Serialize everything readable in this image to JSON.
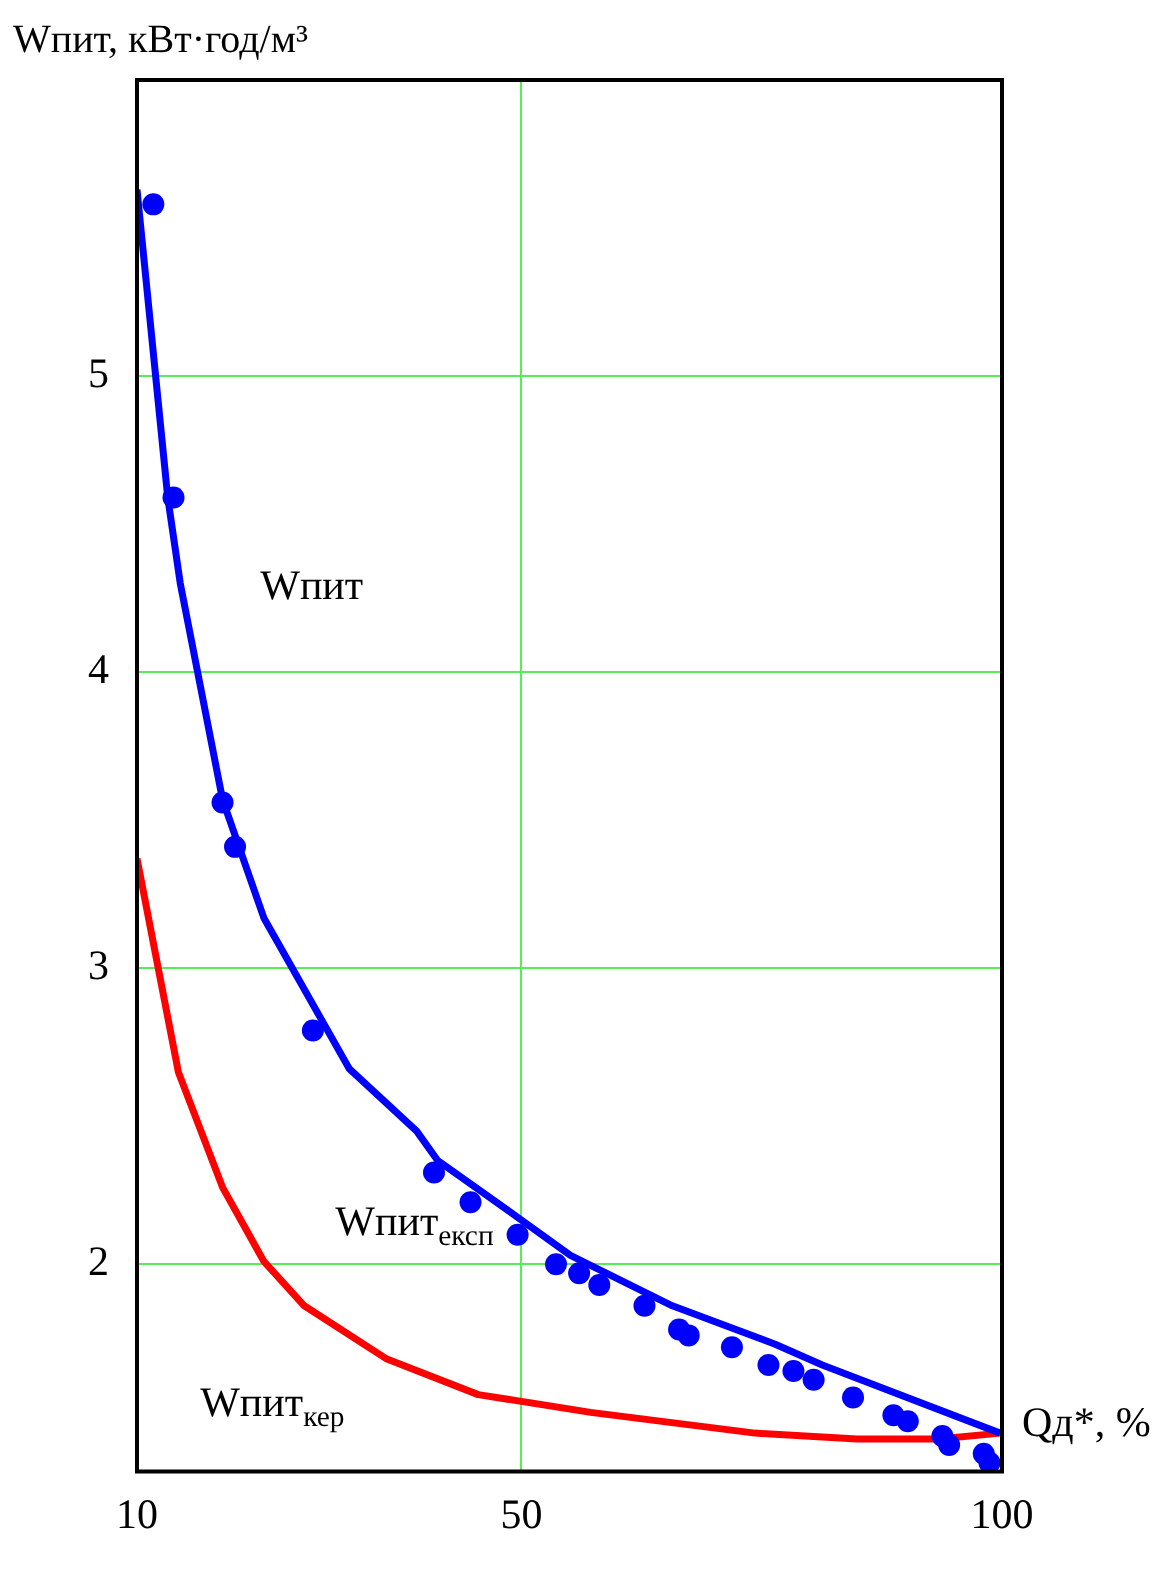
{
  "chart_data": {
    "type": "line",
    "ylabel": "Wпит, кВт·год/м³",
    "xlabel": "Qд*, %",
    "xlim": [
      10,
      100
    ],
    "xticks": [
      10,
      50,
      100
    ],
    "ylim": [
      1.3,
      6
    ],
    "yticks": [
      2,
      3,
      4,
      5
    ],
    "grid": true,
    "legend": false,
    "series": [
      {
        "name": "Wпит",
        "type": "line",
        "marker": "none",
        "color": "#0000ff",
        "x": [
          10,
          13.2,
          14.5,
          18.9,
          23.2,
          32.1,
          39.1,
          41.3,
          48.7,
          55.1,
          65.7,
          76.4,
          81.3,
          99.8
        ],
        "values": [
          5.63,
          4.59,
          4.3,
          3.57,
          3.17,
          2.66,
          2.45,
          2.35,
          2.18,
          2.03,
          1.86,
          1.73,
          1.66,
          1.43
        ]
      },
      {
        "name": "Wпит$_{експ}$",
        "type": "scatter",
        "marker": "circle",
        "color": "#0000ff",
        "x": [
          11.7,
          13.8,
          18.9,
          20.2,
          28.3,
          40.9,
          44.7,
          49.6,
          53.6,
          56,
          58.1,
          62.8,
          66.4,
          67.4,
          71.9,
          75.7,
          78.3,
          80.4,
          84.5,
          88.7,
          90.2,
          93.8,
          94.5,
          98.1,
          98.7
        ],
        "values": [
          5.58,
          4.59,
          3.56,
          3.41,
          2.79,
          2.31,
          2.21,
          2.1,
          2,
          1.97,
          1.93,
          1.86,
          1.78,
          1.76,
          1.72,
          1.66,
          1.64,
          1.61,
          1.55,
          1.49,
          1.47,
          1.42,
          1.39,
          1.36,
          1.33
        ]
      },
      {
        "name": "Wпит$_{кер}$",
        "type": "line",
        "marker": "none",
        "color": "#ff0000",
        "x": [
          10,
          14.3,
          18.9,
          23.2,
          27.4,
          36,
          45.5,
          57.2,
          74.3,
          84.9,
          93.4,
          99.8
        ],
        "values": [
          3.37,
          2.65,
          2.26,
          2.01,
          1.86,
          1.68,
          1.56,
          1.5,
          1.43,
          1.41,
          1.41,
          1.43
        ]
      }
    ]
  }
}
